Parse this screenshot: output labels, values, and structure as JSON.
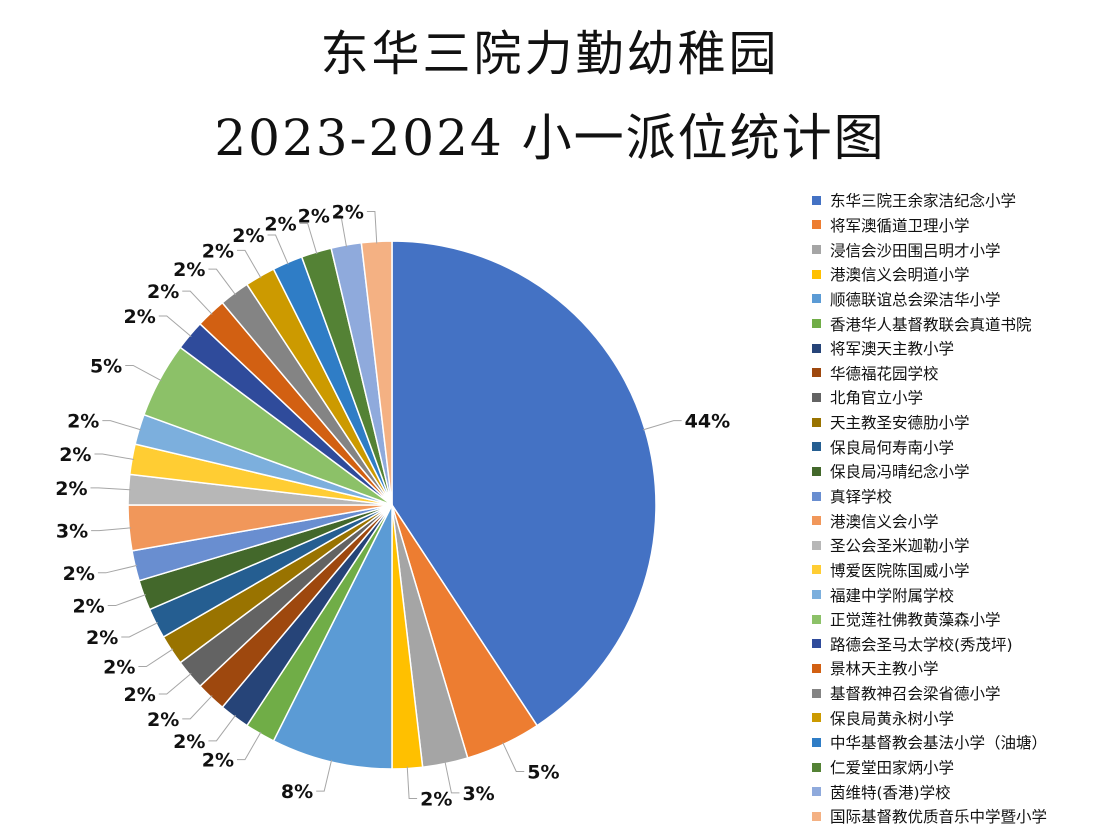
{
  "chart_data": {
    "type": "pie",
    "title": "东华三院力勤幼稚园",
    "subtitle": "2023-2024 小一派位统计图",
    "legend_position": "right",
    "slices": [
      {
        "name": "东华三院王余家洁纪念小学",
        "value": 44,
        "label": "44%",
        "color": "#4472C4"
      },
      {
        "name": "将军澳循道卫理小学",
        "value": 5,
        "label": "5%",
        "color": "#ED7D31"
      },
      {
        "name": "浸信会沙田围吕明才小学",
        "value": 3,
        "label": "3%",
        "color": "#A5A5A5"
      },
      {
        "name": "港澳信义会明道小学",
        "value": 2,
        "label": "2%",
        "color": "#FFC000"
      },
      {
        "name": "顺德联谊总会梁洁华小学",
        "value": 8,
        "label": "8%",
        "color": "#5B9BD5"
      },
      {
        "name": "香港华人基督教联会真道书院",
        "value": 2,
        "label": "2%",
        "color": "#70AD47"
      },
      {
        "name": "将军澳天主教小学",
        "value": 2,
        "label": "2%",
        "color": "#264478"
      },
      {
        "name": "华德福花园学校",
        "value": 2,
        "label": "2%",
        "color": "#9E480E"
      },
      {
        "name": "北角官立小学",
        "value": 2,
        "label": "2%",
        "color": "#636363"
      },
      {
        "name": "天主教圣安德肋小学",
        "value": 2,
        "label": "2%",
        "color": "#997300"
      },
      {
        "name": "保良局何寿南小学",
        "value": 2,
        "label": "2%",
        "color": "#255E91"
      },
      {
        "name": "保良局冯晴纪念小学",
        "value": 2,
        "label": "2%",
        "color": "#43682B"
      },
      {
        "name": "真铎学校",
        "value": 2,
        "label": "2%",
        "color": "#698ED0"
      },
      {
        "name": "港澳信义会小学",
        "value": 3,
        "label": "3%",
        "color": "#F1975A"
      },
      {
        "name": "圣公会圣米迦勒小学",
        "value": 2,
        "label": "2%",
        "color": "#B7B7B7"
      },
      {
        "name": "博爱医院陈国威小学",
        "value": 2,
        "label": "2%",
        "color": "#FFCD33"
      },
      {
        "name": "福建中学附属学校",
        "value": 2,
        "label": "2%",
        "color": "#7CAFDD"
      },
      {
        "name": "正觉莲社佛教黄藻森小学",
        "value": 5,
        "label": "5%",
        "color": "#8CC168"
      },
      {
        "name": "路德会圣马太学校(秀茂坪)",
        "value": 2,
        "label": "2%",
        "color": "#2F4B9B"
      },
      {
        "name": "景林天主教小学",
        "value": 2,
        "label": "2%",
        "color": "#D26012"
      },
      {
        "name": "基督教神召会梁省德小学",
        "value": 2,
        "label": "2%",
        "color": "#848484"
      },
      {
        "name": "保良局黄永树小学",
        "value": 2,
        "label": "2%",
        "color": "#CC9A00"
      },
      {
        "name": "中华基督教会基法小学（油塘）",
        "value": 2,
        "label": "2%",
        "color": "#2F7DC6"
      },
      {
        "name": "仁爱堂田家炳小学",
        "value": 2,
        "label": "2%",
        "color": "#548235"
      },
      {
        "name": "茵维特(香港)学校",
        "value": 2,
        "label": "2%",
        "color": "#8FAADC"
      },
      {
        "name": "国际基督教优质音乐中学暨小学",
        "value": 2,
        "label": "2%",
        "color": "#F4B183"
      }
    ]
  }
}
